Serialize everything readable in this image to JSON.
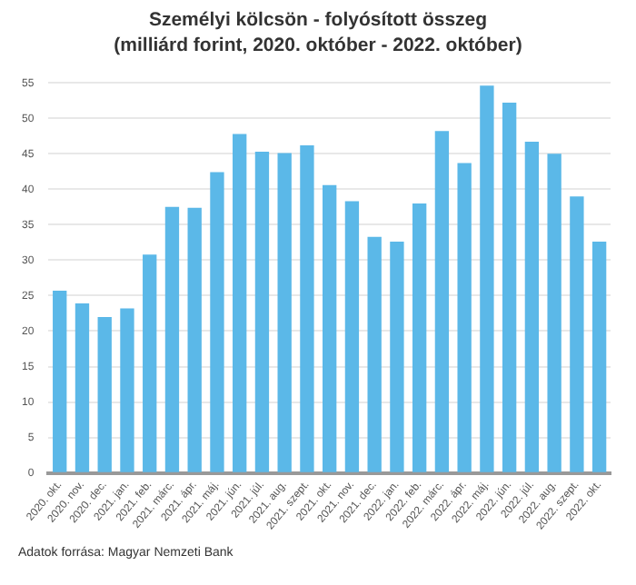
{
  "chart_data": {
    "type": "bar",
    "title": "Személyi kölcsön - folyósított összeg",
    "subtitle": "(milliárd forint, 2020. október - 2022. október)",
    "categories": [
      "2020. okt.",
      "2020. nov.",
      "2020. dec.",
      "2021. jan.",
      "2021. feb.",
      "2021. márc.",
      "2021. ápr.",
      "2021. máj.",
      "2021. jún.",
      "2021. júl.",
      "2021. aug.",
      "2021. szept.",
      "2021. okt.",
      "2021. nov.",
      "2021. dec.",
      "2022. jan.",
      "2022. feb.",
      "2022. márc.",
      "2022. ápr.",
      "2022. máj.",
      "2022. jún.",
      "2022. júl.",
      "2022. aug.",
      "2022. szept.",
      "2022. okt."
    ],
    "values": [
      25.7,
      23.9,
      22.0,
      23.2,
      30.8,
      37.5,
      37.4,
      42.4,
      47.8,
      45.3,
      45.1,
      46.2,
      40.6,
      38.3,
      33.3,
      32.6,
      38.0,
      48.2,
      43.7,
      54.6,
      52.2,
      46.7,
      45.0,
      39.0,
      32.6
    ],
    "color": "#5bb8e8",
    "ylim": [
      0,
      55
    ],
    "yticks": [
      0,
      5,
      10,
      15,
      20,
      25,
      30,
      35,
      40,
      45,
      50,
      55
    ],
    "grid": "y",
    "annotations": [
      "Adatok forrása: Magyar Nemzeti Bank"
    ]
  }
}
